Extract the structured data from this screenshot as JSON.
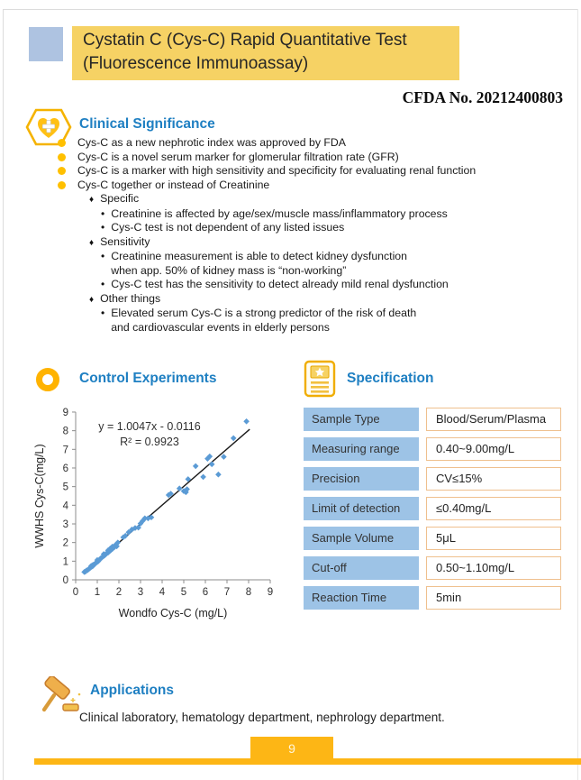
{
  "header": {
    "title_line1": "Cystatin C (Cys-C) Rapid Quantitative Test",
    "title_line2": "(Fluorescence Immunoassay)",
    "cfda": "CFDA No. 20212400803"
  },
  "icons": {
    "diamond": "♦",
    "dot": "•"
  },
  "clinical": {
    "title": "Clinical Significance",
    "bullets": [
      "Cys-C as a new nephrotic index was approved by FDA",
      "Cys-C is a novel serum marker for glomerular filtration rate (GFR)",
      "Cys-C is a marker with high sensitivity and specificity for evaluating renal function",
      "Cys-C together or instead of Creatinine"
    ],
    "groups": [
      {
        "label": "Specific",
        "items": [
          "Creatinine is affected by age/sex/muscle mass/inflammatory process",
          "Cys-C test is not dependent of any listed issues"
        ]
      },
      {
        "label": "Sensitivity",
        "items": [
          "Creatinine measurement  is able to detect kidney dysfunction\nwhen app. 50% of kidney mass is “non-working”",
          "Cys-C test has the sensitivity to detect already mild renal dysfunction"
        ]
      },
      {
        "label": "Other things",
        "items": [
          "Elevated serum Cys-C is a strong predictor of the risk of death\nand cardiovascular events in elderly persons"
        ]
      }
    ]
  },
  "control": {
    "title": "Control Experiments"
  },
  "specification": {
    "title": "Specification",
    "rows": [
      {
        "label": "Sample Type",
        "value": "Blood/Serum/Plasma"
      },
      {
        "label": "Measuring range",
        "value": "0.40~9.00mg/L"
      },
      {
        "label": "Precision",
        "value": "CV≤15%"
      },
      {
        "label": "Limit of detection",
        "value": "≤0.40mg/L"
      },
      {
        "label": "Sample Volume",
        "value": "5μL"
      },
      {
        "label": "Cut-off",
        "value": "0.50~1.10mg/L"
      },
      {
        "label": "Reaction Time",
        "value": "5min"
      }
    ]
  },
  "applications": {
    "title": "Applications",
    "text": "Clinical laboratory, hematology department, nephrology department."
  },
  "footer": {
    "page_number": "9"
  },
  "colors": {
    "accent_blue": "#1E7FC2",
    "header_yellow": "#F6D264",
    "header_square_blue": "#AEC3E1",
    "bullet_yellow": "#FFC000",
    "table_label_bg": "#9DC3E6",
    "table_value_border": "#EFC08E",
    "scatter_marker": "#5B9BD5",
    "footer_yellow": "#FDB615"
  },
  "chart_data": {
    "type": "scatter",
    "title": "",
    "equation": "y = 1.0047x - 0.0116",
    "r_squared": "R² = 0.9923",
    "xlabel": "Wondfo Cys-C  (mg/L)",
    "ylabel": "WWHS Cys-C(mg/L)",
    "xlim": [
      0,
      9
    ],
    "ylim": [
      0,
      9
    ],
    "xticks": [
      0,
      1,
      2,
      3,
      4,
      5,
      6,
      7,
      8,
      9
    ],
    "yticks": [
      0,
      1,
      2,
      3,
      4,
      5,
      6,
      7,
      8,
      9
    ],
    "grid": false,
    "marker": "diamond",
    "marker_color": "#5B9BD5",
    "trendline": {
      "slope": 1.0047,
      "intercept": -0.0116,
      "x_start": 0.35,
      "x_end": 8.05,
      "color": "#1a1a1a"
    },
    "points": [
      [
        0.4,
        0.42
      ],
      [
        0.45,
        0.44
      ],
      [
        0.5,
        0.5
      ],
      [
        0.55,
        0.52
      ],
      [
        0.6,
        0.57
      ],
      [
        0.65,
        0.62
      ],
      [
        0.7,
        0.66
      ],
      [
        0.72,
        0.75
      ],
      [
        0.78,
        0.72
      ],
      [
        0.8,
        0.8
      ],
      [
        0.85,
        0.82
      ],
      [
        0.9,
        0.86
      ],
      [
        0.95,
        0.92
      ],
      [
        1.0,
        0.96
      ],
      [
        1.0,
        1.06
      ],
      [
        1.05,
        1.0
      ],
      [
        1.1,
        1.08
      ],
      [
        1.15,
        1.14
      ],
      [
        1.2,
        1.18
      ],
      [
        1.25,
        1.24
      ],
      [
        1.3,
        1.28
      ],
      [
        1.3,
        1.38
      ],
      [
        1.35,
        1.32
      ],
      [
        1.4,
        1.38
      ],
      [
        1.45,
        1.44
      ],
      [
        1.5,
        1.46
      ],
      [
        1.5,
        1.58
      ],
      [
        1.55,
        1.52
      ],
      [
        1.6,
        1.56
      ],
      [
        1.6,
        1.68
      ],
      [
        1.65,
        1.62
      ],
      [
        1.7,
        1.66
      ],
      [
        1.7,
        1.78
      ],
      [
        1.75,
        1.72
      ],
      [
        1.8,
        1.76
      ],
      [
        1.85,
        1.88
      ],
      [
        1.9,
        1.8
      ],
      [
        1.95,
        2.0
      ],
      [
        2.2,
        2.28
      ],
      [
        2.3,
        2.36
      ],
      [
        2.45,
        2.55
      ],
      [
        2.6,
        2.7
      ],
      [
        2.75,
        2.78
      ],
      [
        2.9,
        2.8
      ],
      [
        3.0,
        3.02
      ],
      [
        3.1,
        3.16
      ],
      [
        3.2,
        3.3
      ],
      [
        3.35,
        3.3
      ],
      [
        3.5,
        3.35
      ],
      [
        4.3,
        4.55
      ],
      [
        4.4,
        4.62
      ],
      [
        4.8,
        4.9
      ],
      [
        5.0,
        4.76
      ],
      [
        5.1,
        4.7
      ],
      [
        5.15,
        4.86
      ],
      [
        5.2,
        5.4
      ],
      [
        5.55,
        6.1
      ],
      [
        5.9,
        5.52
      ],
      [
        6.1,
        6.5
      ],
      [
        6.2,
        6.62
      ],
      [
        6.3,
        6.2
      ],
      [
        6.6,
        5.65
      ],
      [
        6.85,
        6.6
      ],
      [
        7.3,
        7.6
      ],
      [
        7.9,
        8.5
      ]
    ]
  }
}
